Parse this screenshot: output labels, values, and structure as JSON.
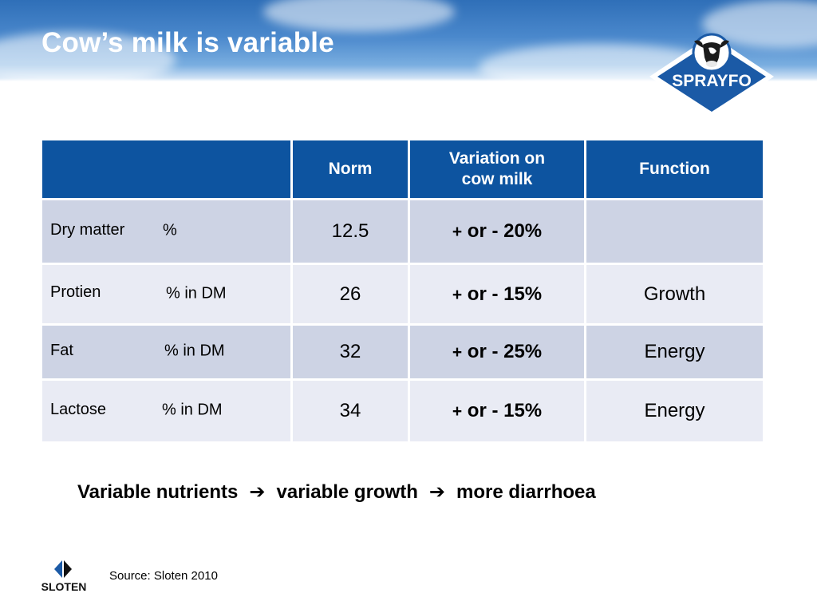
{
  "slide": {
    "title": "Cow’s milk is variable"
  },
  "logos": {
    "sprayfo_text": "SPRAYFO",
    "sloten_text": "SLOTEN"
  },
  "table": {
    "headers": [
      "",
      "Norm",
      "Variation on cow milk",
      "Function"
    ],
    "header_lines": {
      "variation": [
        "Variation on",
        "cow milk"
      ]
    },
    "rows": [
      {
        "nutrient": "Dry matter",
        "unit": "%",
        "norm": "12.5",
        "variation_pm": "+",
        "variation_rest": "or - 20%",
        "function": ""
      },
      {
        "nutrient": "Protien",
        "unit": "% in DM",
        "norm": "26",
        "variation_pm": "+",
        "variation_rest": "or - 15%",
        "function": "Growth"
      },
      {
        "nutrient": "Fat",
        "unit": "% in DM",
        "norm": "32",
        "variation_pm": "+",
        "variation_rest": "or - 25%",
        "function": "Energy"
      },
      {
        "nutrient": "Lactose",
        "unit": "% in DM",
        "norm": "34",
        "variation_pm": "+",
        "variation_rest": "or - 15%",
        "function": "Energy"
      }
    ]
  },
  "summary": {
    "part1": "Variable nutrients",
    "part2": "variable growth",
    "part3": "more diarrhoea",
    "arrow_icon": "right-arrow-icon"
  },
  "source": "Source: Sloten 2010",
  "colors": {
    "header_blue": "#0d54a0",
    "row_dark": "#cdd3e4",
    "row_light": "#e9ebf4",
    "accent_orange": "#e4571c"
  }
}
